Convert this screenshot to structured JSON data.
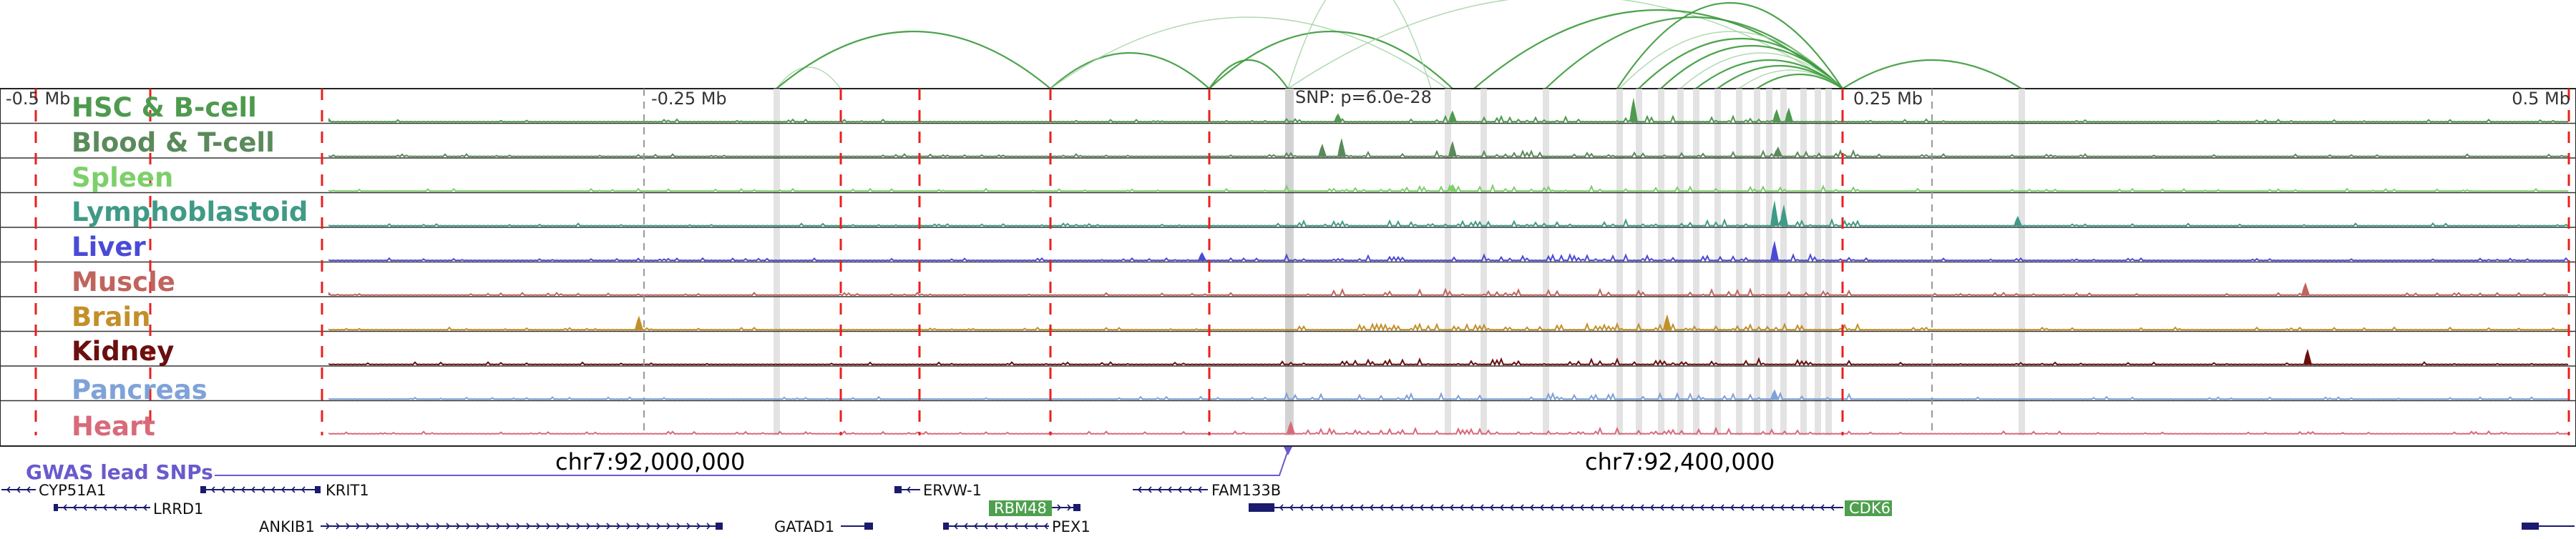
{
  "axis": {
    "left_label": "-0.5 Mb",
    "mid_left_label": "-0.25 Mb",
    "mid_right_label": "0.25 Mb",
    "right_label": "0.5 Mb",
    "range_mb": [
      -0.5,
      0.5
    ]
  },
  "snp_label": "SNP: p=6.0e-28",
  "tracks": [
    {
      "name": "HSC & B-cell",
      "color": "#4e9a4e"
    },
    {
      "name": "Blood & T-cell",
      "color": "#5a8a5a"
    },
    {
      "name": "Spleen",
      "color": "#7dcf6a"
    },
    {
      "name": "Lymphoblastoid",
      "color": "#3f9a86"
    },
    {
      "name": "Liver",
      "color": "#4a4ad8"
    },
    {
      "name": "Muscle",
      "color": "#c0645e"
    },
    {
      "name": "Brain",
      "color": "#c2902a"
    },
    {
      "name": "Kidney",
      "color": "#6a0f0f"
    },
    {
      "name": "Pancreas",
      "color": "#7fa2d8"
    },
    {
      "name": "Heart",
      "color": "#d86a7a"
    }
  ],
  "gwas_label": "GWAS lead SNPs",
  "gwas_color": "#6a5acd",
  "chr_labels": [
    "chr7:92,000,000",
    "chr7:92,400,000"
  ],
  "genes": [
    {
      "name": "CYP51A1",
      "highlight": false
    },
    {
      "name": "KRIT1",
      "highlight": false
    },
    {
      "name": "LRRD1",
      "highlight": false
    },
    {
      "name": "ERVW-1",
      "highlight": false
    },
    {
      "name": "FAM133B",
      "highlight": false
    },
    {
      "name": "RBM48",
      "highlight": true
    },
    {
      "name": "CDK6",
      "highlight": true
    },
    {
      "name": "ANKIB1",
      "highlight": false
    },
    {
      "name": "GATAD1",
      "highlight": false
    },
    {
      "name": "PEX1",
      "highlight": false
    }
  ],
  "gene_color": "#1a1a6e",
  "highlight_color": "#4ea04e",
  "arc_color": "#3a9a3a",
  "boundary_color": "#e8201e"
}
